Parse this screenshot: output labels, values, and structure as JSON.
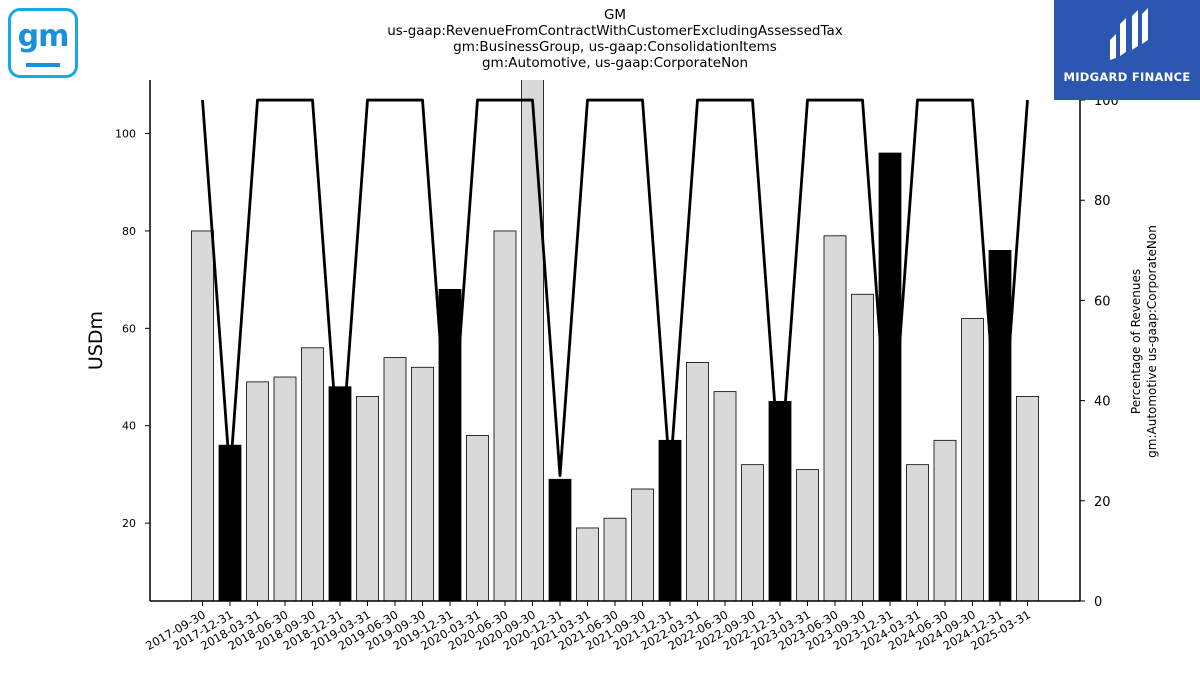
{
  "title_lines": [
    "GM",
    "us-gaap:RevenueFromContractWithCustomerExcludingAssessedTax",
    "gm:BusinessGroup, us-gaap:ConsolidationItems",
    "gm:Automotive, us-gaap:CorporateNon"
  ],
  "logo": {
    "left_mark": "gm",
    "brand_name": "MIDGARD FINANCE"
  },
  "colors": {
    "bar_default": "#d9d9d9",
    "bar_highlight": "#000000",
    "line": "#000000",
    "brand_blue": "#2b57b1",
    "gm_blue": "#1a8fe0"
  },
  "chart_data": {
    "type": "bar",
    "x_tick_labels": [
      "2017-09-30",
      "2017-12-31",
      "2018-03-31",
      "2018-06-30",
      "2018-09-30",
      "2018-12-31",
      "2019-03-31",
      "2019-06-30",
      "2019-09-30",
      "2019-12-31",
      "2020-03-31",
      "2020-06-30",
      "2020-09-30",
      "2020-12-31",
      "2021-03-31",
      "2021-06-30",
      "2021-09-30",
      "2021-12-31",
      "2022-03-31",
      "2022-06-30",
      "2022-09-30",
      "2022-12-31",
      "2023-03-31",
      "2023-06-30",
      "2023-09-30",
      "2023-12-31",
      "2024-03-31",
      "2024-06-30",
      "2024-09-30",
      "2024-12-31",
      "2025-03-31"
    ],
    "bar_values": [
      80,
      36,
      49,
      50,
      56,
      48,
      46,
      54,
      52,
      68,
      38,
      80,
      113,
      29,
      19,
      21,
      27,
      37,
      53,
      47,
      32,
      45,
      31,
      79,
      67,
      96,
      32,
      37,
      62,
      76,
      46
    ],
    "highlight": [
      false,
      true,
      false,
      false,
      false,
      true,
      false,
      false,
      false,
      true,
      false,
      false,
      false,
      true,
      false,
      false,
      false,
      true,
      false,
      false,
      false,
      true,
      false,
      false,
      false,
      true,
      false,
      false,
      false,
      true,
      false
    ],
    "line_values": [
      100,
      25,
      100,
      100,
      100,
      25,
      100,
      100,
      100,
      25,
      100,
      100,
      100,
      25,
      100,
      100,
      100,
      25,
      100,
      100,
      100,
      25,
      100,
      100,
      100,
      25,
      100,
      100,
      100,
      25,
      100
    ],
    "ylabel_left": "USDm",
    "ylabel_right_lines": [
      "Percentage of Revenues",
      "gm:Automotive us-gaap:CorporateNon"
    ],
    "ylim_left": [
      4,
      111
    ],
    "yticks_left": [
      20,
      40,
      60,
      80,
      100
    ],
    "ylim_right": [
      0,
      104
    ],
    "yticks_right": [
      0,
      20,
      40,
      60,
      80,
      100
    ],
    "grid": false
  }
}
